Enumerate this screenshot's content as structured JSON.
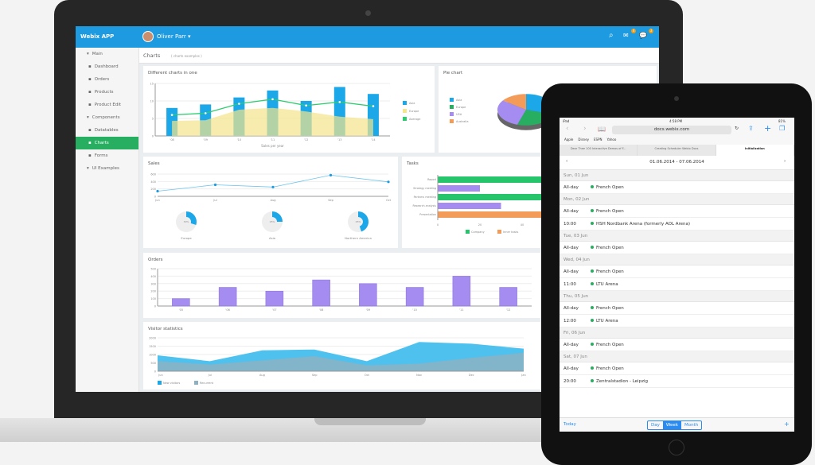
{
  "laptop": {
    "app_title": "Webix APP",
    "user": "Oliver Parr",
    "header_icons": [
      "search-icon",
      "mail-icon",
      "message-icon"
    ],
    "badges": [
      "4",
      "3"
    ],
    "breadcrumb": {
      "title": "Charts",
      "sub": "( charts examples )"
    },
    "sidebar": [
      {
        "label": "Main",
        "group": true
      },
      {
        "label": "Dashboard"
      },
      {
        "label": "Orders"
      },
      {
        "label": "Products"
      },
      {
        "label": "Product Edit"
      },
      {
        "label": "Components",
        "group": true
      },
      {
        "label": "Datatables"
      },
      {
        "label": "Charts",
        "active": true
      },
      {
        "label": "Forms"
      },
      {
        "label": "UI Examples",
        "group": true
      }
    ],
    "colors": {
      "header": "#1e9be0",
      "active": "#27ae60",
      "asia": "#1ca7e8",
      "europe": "#f4e48a",
      "average": "#2ecc71",
      "orders": "#a58cf0",
      "company": "#27c56b",
      "inner": "#a58cf0",
      "presentation": "#f39c5a"
    }
  },
  "chart_data": [
    {
      "id": "combo",
      "title": "Different charts in one",
      "type": "bar",
      "xlabel": "Sales per year",
      "categories": [
        "'08",
        "'09",
        "'10",
        "'11",
        "'12",
        "'13",
        "'14"
      ],
      "ylim": [
        0,
        15
      ],
      "yticks": [
        0,
        5,
        10,
        15
      ],
      "series": [
        {
          "name": "Asia",
          "type": "bar",
          "values": [
            8,
            9,
            11,
            13,
            10,
            14,
            12
          ]
        },
        {
          "name": "Europe",
          "type": "area",
          "values": [
            4.3,
            4.5,
            7.5,
            8,
            7,
            5.5,
            4.8
          ]
        },
        {
          "name": "Average",
          "type": "line",
          "values": [
            6,
            6.5,
            9.2,
            10.5,
            8.7,
            9.7,
            8.5
          ]
        }
      ]
    },
    {
      "id": "pie",
      "title": "Pie chart",
      "type": "pie",
      "legend": [
        "Asia",
        "Europe",
        "USA",
        "Australia"
      ],
      "values": [
        30,
        25,
        30,
        15
      ],
      "colors": [
        "#1ca7e8",
        "#27ae60",
        "#a58cf0",
        "#f39c5a"
      ]
    },
    {
      "id": "sales",
      "title": "Sales",
      "type": "line",
      "categories": [
        "Jun",
        "Jul",
        "Aug",
        "Sep",
        "Oct"
      ],
      "ylim": [
        0,
        600
      ],
      "yticks": [
        0,
        200,
        400,
        600
      ],
      "values": [
        140,
        310,
        250,
        570,
        390
      ],
      "donuts": [
        {
          "label": "Europe",
          "value": 30
        },
        {
          "label": "Asia",
          "value": 25
        },
        {
          "label": "Northern America",
          "value": 45
        }
      ]
    },
    {
      "id": "tasks",
      "title": "Tasks",
      "type": "bar",
      "orientation": "horizontal",
      "categories": [
        "Report",
        "Strategy meeting",
        "Partners meeting",
        "Research analysis",
        "Presentation"
      ],
      "xticks": [
        0,
        20,
        40
      ],
      "values": [
        60,
        20,
        60,
        30,
        60
      ],
      "legend": [
        "Company",
        "Inner tasks"
      ]
    },
    {
      "id": "orders",
      "title": "Orders",
      "type": "bar",
      "categories": [
        "'05",
        "'06",
        "'07",
        "'08",
        "'09",
        "'10",
        "'11",
        "'12"
      ],
      "ylim": [
        0,
        500
      ],
      "yticks": [
        0,
        100,
        200,
        300,
        400,
        500
      ],
      "values": [
        100,
        250,
        200,
        350,
        300,
        250,
        400,
        250
      ]
    },
    {
      "id": "visitors",
      "title": "Visitor statistics",
      "type": "area",
      "categories": [
        "Jun",
        "Jul",
        "Aug",
        "Sep",
        "Oct",
        "Nov",
        "Dec",
        "Jan"
      ],
      "ylim": [
        0,
        2000
      ],
      "yticks": [
        0,
        500,
        1000,
        1500,
        2000
      ],
      "series": [
        {
          "name": "New visitors",
          "values": [
            950,
            600,
            1250,
            1300,
            600,
            1750,
            1650,
            1350
          ]
        },
        {
          "name": "Recurrent",
          "values": [
            600,
            400,
            650,
            900,
            350,
            450,
            800,
            1100
          ]
        }
      ]
    }
  ],
  "tablet": {
    "status": {
      "left": "iPad",
      "time": "4:58 PM",
      "battery": "81%"
    },
    "url": "docs.webix.com",
    "bookmarks": [
      "Apple",
      "Disney",
      "ESPN",
      "Yahoo"
    ],
    "tabs": [
      "Dear Thee 100 Interactive Demos of F...",
      "Creating Scheduler Webix Docs",
      "Initialization"
    ],
    "range": "01.06.2014 - 07.06.2014",
    "days": [
      {
        "day": "Sun, 01 Jun",
        "events": [
          {
            "time": "All-day",
            "title": "French Open"
          }
        ]
      },
      {
        "day": "Mon, 02 Jun",
        "events": [
          {
            "time": "All-day",
            "title": "French Open"
          },
          {
            "time": "10:00",
            "title": "HSH Nordbank Arena (formerly AOL Arena)"
          }
        ]
      },
      {
        "day": "Tue, 03 Jun",
        "events": [
          {
            "time": "All-day",
            "title": "French Open"
          }
        ]
      },
      {
        "day": "Wed, 04 Jun",
        "events": [
          {
            "time": "All-day",
            "title": "French Open"
          },
          {
            "time": "11:00",
            "title": "LTU Arena"
          }
        ]
      },
      {
        "day": "Thu, 05 Jun",
        "events": [
          {
            "time": "All-day",
            "title": "French Open"
          },
          {
            "time": "12:00",
            "title": "LTU Arena"
          }
        ]
      },
      {
        "day": "Fri, 06 Jun",
        "events": [
          {
            "time": "All-day",
            "title": "French Open"
          }
        ]
      },
      {
        "day": "Sat, 07 Jun",
        "events": [
          {
            "time": "All-day",
            "title": "French Open"
          },
          {
            "time": "20:00",
            "title": "Zentralstadion - Leipzig"
          }
        ]
      }
    ],
    "footer": {
      "today": "Today",
      "modes": [
        "Day",
        "Week",
        "Month"
      ],
      "active_mode": "Week",
      "add": "+"
    }
  }
}
